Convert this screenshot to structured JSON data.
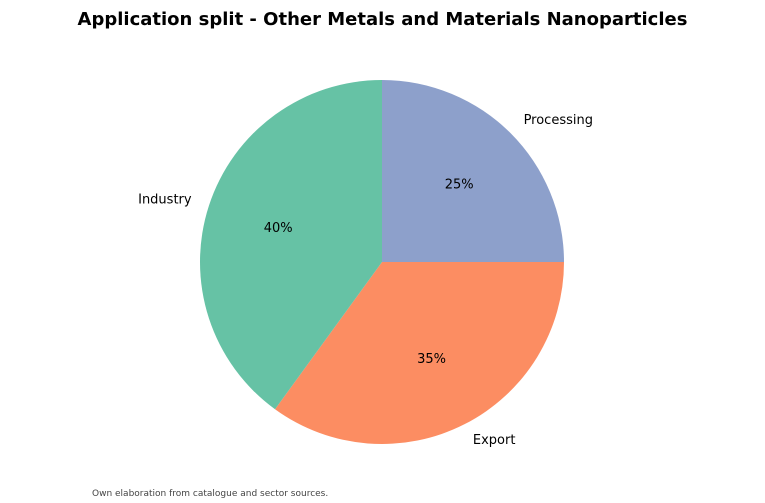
{
  "chart_data": {
    "type": "pie",
    "title": "Application split - Other Metals and Materials Nanoparticles",
    "categories": [
      "Processing",
      "Export",
      "Industry"
    ],
    "values": [
      25,
      35,
      40
    ],
    "value_labels": [
      "25%",
      "35%",
      "40%"
    ],
    "colors": [
      "#8DA0CB",
      "#FC8D62",
      "#66C2A5"
    ],
    "start_angle": "90 degrees (top), clockwise",
    "legend": "none"
  },
  "footnote": "Own elaboration from catalogue and sector sources."
}
